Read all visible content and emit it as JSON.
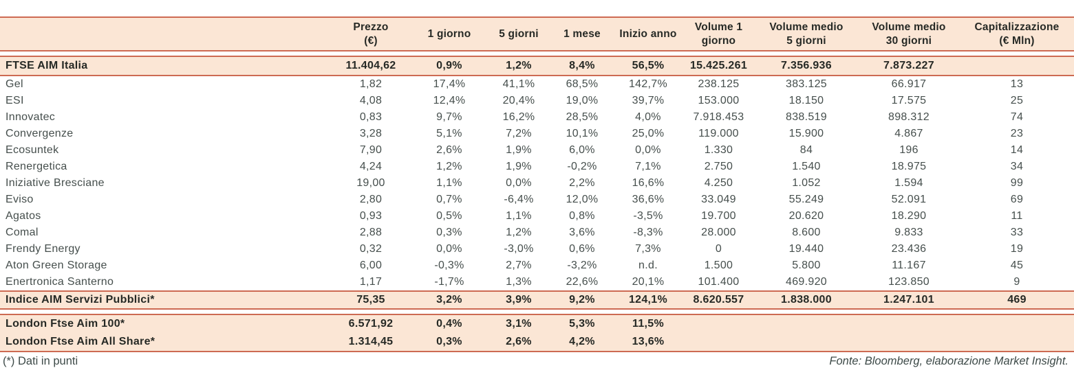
{
  "colors": {
    "band_fill": "#fbe6d5",
    "border": "#cd6a52",
    "text_bold": "#262925",
    "text_regular": "#454e4c"
  },
  "header": {
    "cells": [
      "",
      "Prezzo\n(€)",
      "1 giorno",
      "5 giorni",
      "1 mese",
      "Inizio anno",
      "Volume 1\ngiorno",
      "Volume medio\n5 giorni",
      "Volume medio\n30 giorni",
      "Capitalizzazione\n(€ Mln)"
    ]
  },
  "index_row": {
    "name": "FTSE AIM Italia",
    "values": [
      "11.404,62",
      "0,9%",
      "1,2%",
      "8,4%",
      "56,5%",
      "15.425.261",
      "7.356.936",
      "7.873.227",
      ""
    ]
  },
  "companies": [
    {
      "name": "Gel",
      "values": [
        "1,82",
        "17,4%",
        "41,1%",
        "68,5%",
        "142,7%",
        "238.125",
        "383.125",
        "66.917",
        "13"
      ]
    },
    {
      "name": "ESI",
      "values": [
        "4,08",
        "12,4%",
        "20,4%",
        "19,0%",
        "39,7%",
        "153.000",
        "18.150",
        "17.575",
        "25"
      ]
    },
    {
      "name": "Innovatec",
      "values": [
        "0,83",
        "9,7%",
        "16,2%",
        "28,5%",
        "4,0%",
        "7.918.453",
        "838.519",
        "898.312",
        "74"
      ]
    },
    {
      "name": "Convergenze",
      "values": [
        "3,28",
        "5,1%",
        "7,2%",
        "10,1%",
        "25,0%",
        "119.000",
        "15.900",
        "4.867",
        "23"
      ]
    },
    {
      "name": "Ecosuntek",
      "values": [
        "7,90",
        "2,6%",
        "1,9%",
        "6,0%",
        "0,0%",
        "1.330",
        "84",
        "196",
        "14"
      ]
    },
    {
      "name": "Renergetica",
      "values": [
        "4,24",
        "1,2%",
        "1,9%",
        "-0,2%",
        "7,1%",
        "2.750",
        "1.540",
        "18.975",
        "34"
      ]
    },
    {
      "name": "Iniziative Bresciane",
      "values": [
        "19,00",
        "1,1%",
        "0,0%",
        "2,2%",
        "16,6%",
        "4.250",
        "1.052",
        "1.594",
        "99"
      ]
    },
    {
      "name": "Eviso",
      "values": [
        "2,80",
        "0,7%",
        "-6,4%",
        "12,0%",
        "36,6%",
        "33.049",
        "55.249",
        "52.091",
        "69"
      ]
    },
    {
      "name": "Agatos",
      "values": [
        "0,93",
        "0,5%",
        "1,1%",
        "0,8%",
        "-3,5%",
        "19.700",
        "20.620",
        "18.290",
        "11"
      ]
    },
    {
      "name": "Comal",
      "values": [
        "2,88",
        "0,3%",
        "1,2%",
        "3,6%",
        "-8,3%",
        "28.000",
        "8.600",
        "9.833",
        "33"
      ]
    },
    {
      "name": "Frendy Energy",
      "values": [
        "0,32",
        "0,0%",
        "-3,0%",
        "0,6%",
        "7,3%",
        "0",
        "19.440",
        "23.436",
        "19"
      ]
    },
    {
      "name": "Aton Green Storage",
      "values": [
        "6,00",
        "-0,3%",
        "2,7%",
        "-3,2%",
        "n.d.",
        "1.500",
        "5.800",
        "11.167",
        "45"
      ]
    },
    {
      "name": "Enertronica Santerno",
      "values": [
        "1,17",
        "-1,7%",
        "1,3%",
        "22,6%",
        "20,1%",
        "101.400",
        "469.920",
        "123.850",
        "9"
      ]
    }
  ],
  "aggregate_row": {
    "name": "Indice AIM Servizi Pubblici*",
    "values": [
      "75,35",
      "3,2%",
      "3,9%",
      "9,2%",
      "124,1%",
      "8.620.557",
      "1.838.000",
      "1.247.101",
      "469"
    ]
  },
  "london_rows": [
    {
      "name": "London Ftse Aim 100*",
      "values": [
        "6.571,92",
        "0,4%",
        "3,1%",
        "5,3%",
        "11,5%",
        "",
        "",
        "",
        ""
      ]
    },
    {
      "name": "London Ftse Aim All Share*",
      "values": [
        "1.314,45",
        "0,3%",
        "2,6%",
        "4,2%",
        "13,6%",
        "",
        "",
        "",
        ""
      ]
    }
  ],
  "footer": {
    "note": "(*) Dati in punti",
    "source": "Fonte: Bloomberg, elaborazione Market Insight."
  }
}
